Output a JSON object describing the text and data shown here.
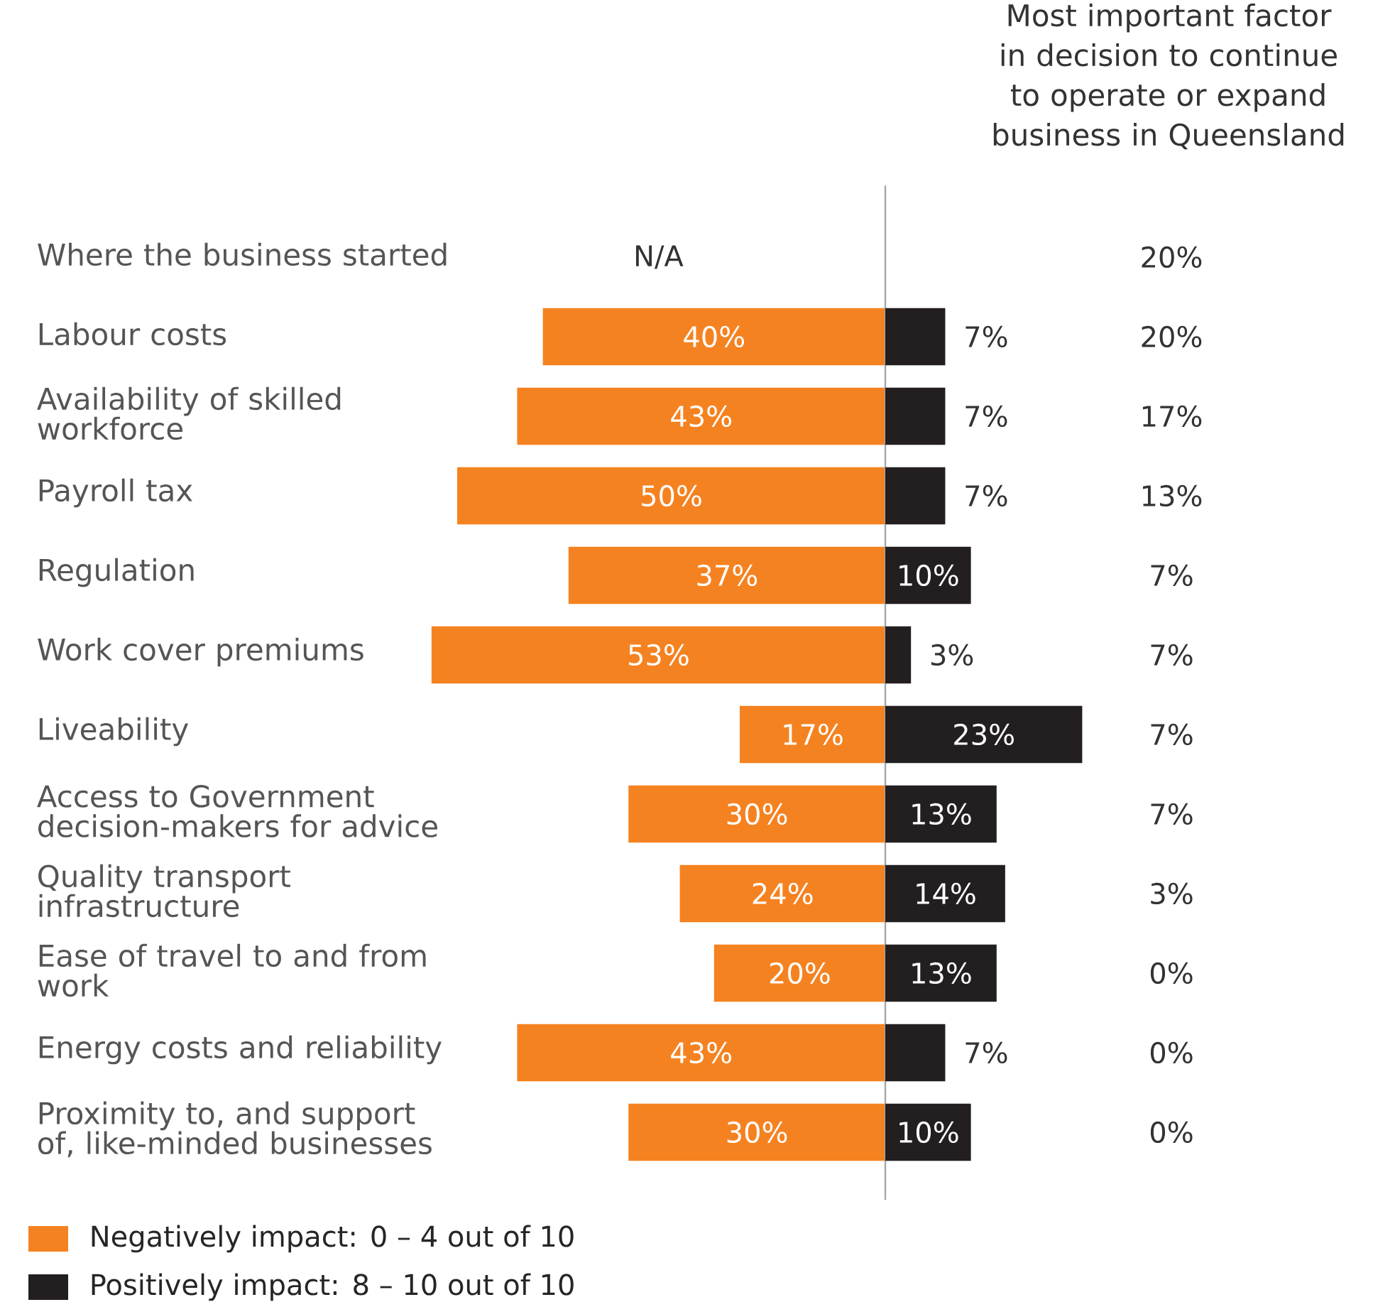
{
  "chart_data": [
    {
      "type": "bar",
      "orientation": "horizontal",
      "legend": "bottom left",
      "data_labels": true,
      "xlim": [
        53,
        0
      ],
      "categories": [
        "Where the business started",
        "Labour costs",
        "Availability of skilled workforce",
        "Payroll tax",
        "Regulation",
        "Work cover premiums",
        "Liveability",
        "Access to Government decision-makers for advice",
        "Quality transport infrastructure",
        "Ease of travel to and from work",
        "Energy costs and reliability",
        "Proximity to, and support of, like-minded businesses"
      ],
      "series": [
        {
          "name": "Negatively impact: 0 – 4 out of 10",
          "color": "#f58220",
          "values": [
            null,
            40,
            43,
            50,
            37,
            53,
            17,
            30,
            24,
            20,
            43,
            30
          ],
          "value_labels": [
            "N/A",
            "40%",
            "43%",
            "50%",
            "37%",
            "53%",
            "17%",
            "30%",
            "24%",
            "20%",
            "43%",
            "30%"
          ]
        }
      ]
    },
    {
      "type": "bar",
      "orientation": "horizontal",
      "legend": "bottom left",
      "data_labels": true,
      "xlim": [
        0,
        23
      ],
      "series": [
        {
          "name": "Positively impact: 8 – 10 out of 10",
          "color": "#231f20",
          "values": [
            null,
            7,
            7,
            7,
            10,
            3,
            23,
            13,
            14,
            13,
            7,
            10
          ],
          "value_labels": [
            null,
            "7%",
            "7%",
            "7%",
            "10%",
            "3%",
            "23%",
            "13%",
            "14%",
            "13%",
            "7%",
            "10%"
          ]
        }
      ]
    },
    {
      "type": "other",
      "title": "Most important factor in decision to continue to operate or expand business in Queensland",
      "data_labels": true,
      "value_labels": [
        "20%",
        "20%",
        "17%",
        "13%",
        "7%",
        "7%",
        "7%",
        "7%",
        "3%",
        "0%",
        "0%",
        "0%"
      ]
    }
  ]
}
